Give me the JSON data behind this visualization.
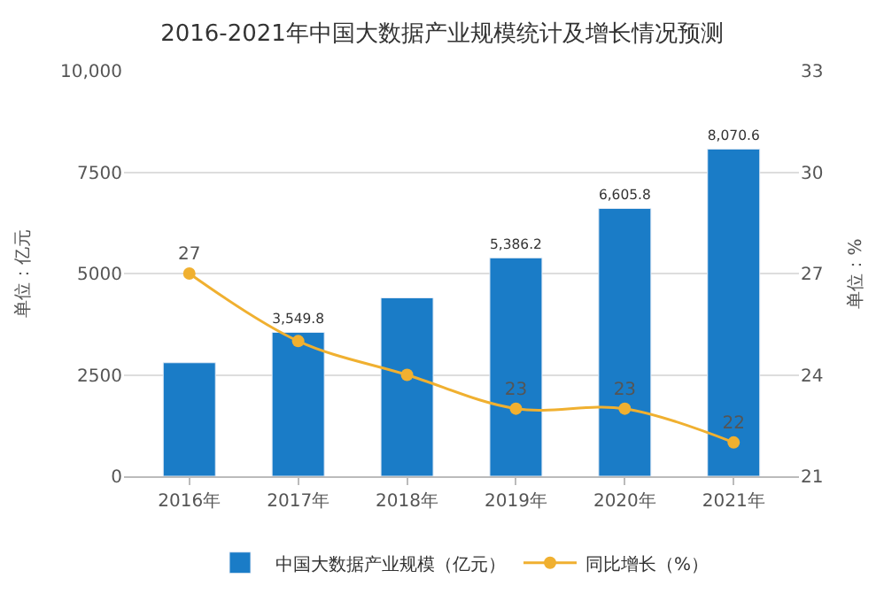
{
  "chart_data": {
    "type": "bar",
    "title": "2016-2021年中国大数据产业规模统计及增长情况预测",
    "ylabel": "单位：亿元",
    "y2label": "单位：%",
    "categories": [
      "2016年",
      "2017年",
      "2018年",
      "2019年",
      "2020年",
      "2021年"
    ],
    "series": [
      {
        "name": "中国大数据产业规模（亿元）",
        "color": "#1a7cc7",
        "values": [
          2800,
          3549.8,
          4400,
          5386.2,
          6605.8,
          8070.6
        ],
        "value_labels": [
          null,
          "3,549.8",
          null,
          "5,386.2",
          "6,605.8",
          "8,070.6"
        ]
      },
      {
        "name": "同比增长（%）",
        "type": "line",
        "axis": "y2",
        "color": "#f0b030",
        "values": [
          27,
          25,
          24,
          23,
          23,
          22
        ],
        "value_labels": [
          "27",
          null,
          null,
          "23",
          "23",
          "22"
        ]
      }
    ],
    "ylim": [
      0,
      10000
    ],
    "yticks": [
      0,
      2500,
      5000,
      {
        "value": 7500,
        "label": "7500"
      },
      {
        "value": 10000,
        "label": "10,000"
      }
    ],
    "y2lim": [
      21,
      33
    ],
    "y2ticks": [
      21,
      24,
      27,
      30,
      33
    ],
    "grid": "y",
    "legend": "bottom",
    "marker": "circle"
  }
}
